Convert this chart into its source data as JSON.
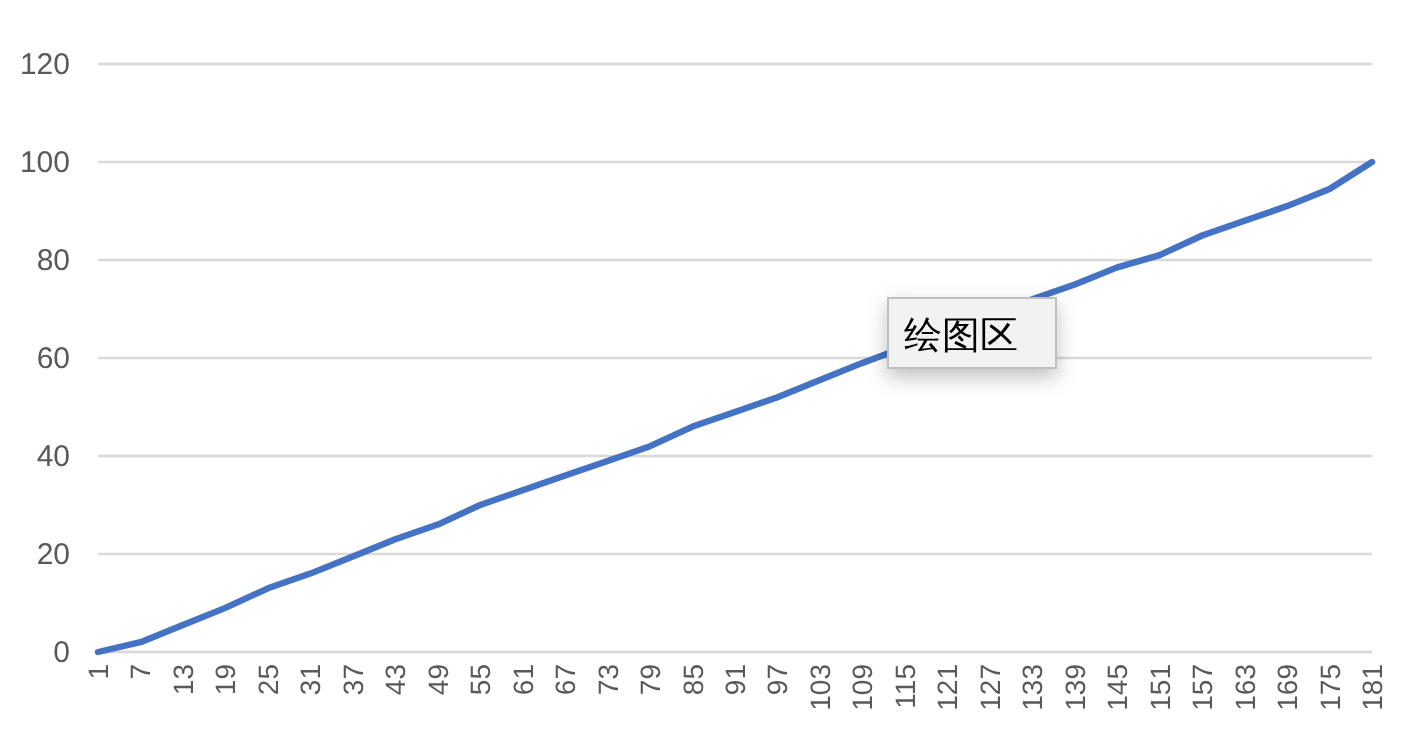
{
  "chart_data": {
    "type": "line",
    "x": [
      1,
      7,
      13,
      19,
      25,
      31,
      37,
      43,
      49,
      55,
      61,
      67,
      73,
      79,
      85,
      91,
      97,
      103,
      109,
      133,
      139,
      145,
      151,
      157,
      163,
      169,
      175,
      181
    ],
    "series": [
      {
        "color": "#4472c4",
        "values": [
          0,
          2,
          5.5,
          9,
          13,
          16,
          19.5,
          23,
          26,
          30,
          33,
          36,
          39,
          42,
          46,
          49,
          52,
          55.5,
          59,
          72,
          75,
          78.5,
          81,
          85,
          88,
          91,
          94.5,
          100
        ]
      }
    ],
    "xlim": [
      1,
      181
    ],
    "xticks": [
      1,
      7,
      13,
      19,
      25,
      31,
      37,
      43,
      49,
      55,
      61,
      67,
      73,
      79,
      85,
      91,
      97,
      103,
      109,
      115,
      121,
      127,
      133,
      139,
      145,
      151,
      157,
      163,
      169,
      175,
      181
    ],
    "ylim": [
      0,
      120
    ],
    "yticks": [
      0,
      20,
      40,
      60,
      80,
      100,
      120
    ],
    "grid": "y",
    "annotations": [
      "绘图区"
    ]
  }
}
